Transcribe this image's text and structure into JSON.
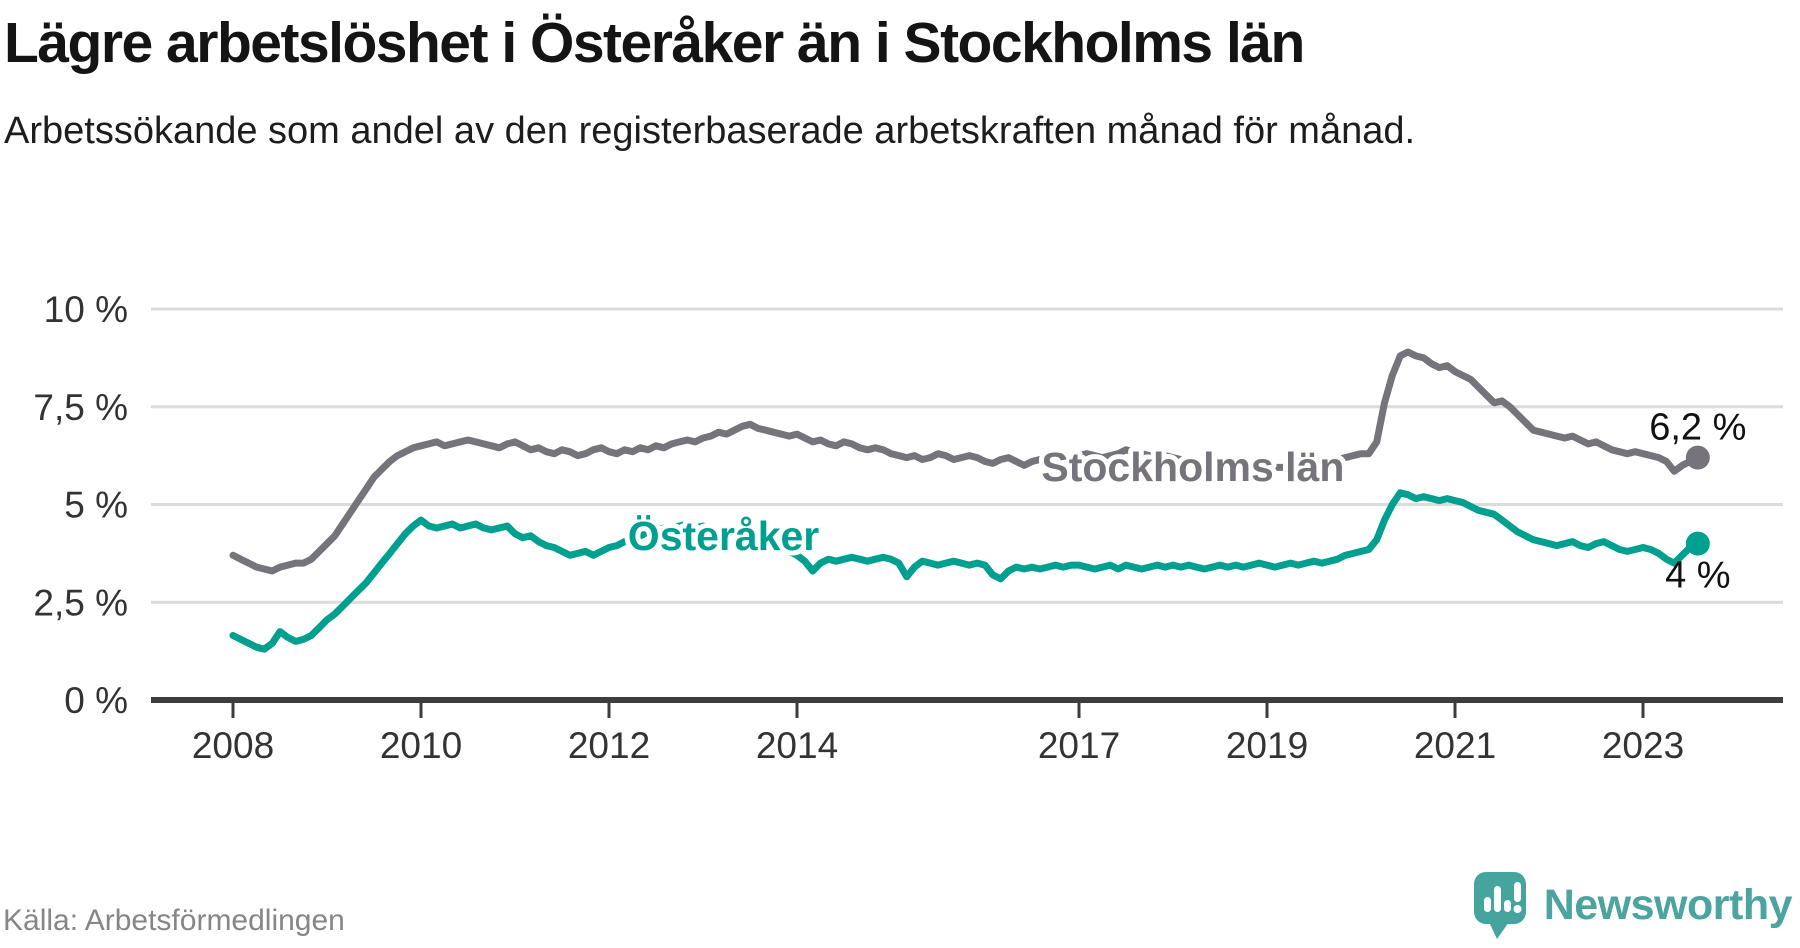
{
  "header": {
    "title": "Lägre arbetslöshet i Österåker än i Stockholms län",
    "subtitle": "Arbetssökande som andel av den registerbaserade arbetskraften månad för månad."
  },
  "footer": {
    "source": "Källa: Arbetsförmedlingen",
    "brand_name": "Newsworthy"
  },
  "colors": {
    "stockholm_line": "#76737b",
    "osteraker_line": "#00a091",
    "gridline": "#dcdcdc",
    "axis": "#3d3d3d",
    "tick_label": "#333333",
    "end_label": "#111111",
    "brand_teal": "#45a59e"
  },
  "chart_data": {
    "type": "line",
    "title": "Lägre arbetslöshet i Österåker än i Stockholms län",
    "subtitle": "Arbetssökande som andel av den registerbaserade arbetskraften månad för månad.",
    "unit": "%",
    "frequency": "monthly",
    "x_start": "2008-01",
    "x_end": "2023-08",
    "ylim": [
      0,
      10
    ],
    "grid": "horizontal",
    "legend_position": "inline-labels",
    "y_axis_ticks": [
      {
        "value": 10,
        "label": "10 %"
      },
      {
        "value": 7.5,
        "label": "7,5 %"
      },
      {
        "value": 5,
        "label": "5 %"
      },
      {
        "value": 2.5,
        "label": "2,5 %"
      },
      {
        "value": 0,
        "label": "0 %"
      }
    ],
    "x_axis_ticks": [
      {
        "year": 2008,
        "label": "2008"
      },
      {
        "year": 2010,
        "label": "2010"
      },
      {
        "year": 2012,
        "label": "2012"
      },
      {
        "year": 2014,
        "label": "2014"
      },
      {
        "year": 2017,
        "label": "2017"
      },
      {
        "year": 2019,
        "label": "2019"
      },
      {
        "year": 2021,
        "label": "2021"
      },
      {
        "year": 2023,
        "label": "2023"
      }
    ],
    "series": [
      {
        "name": "Stockholms län",
        "color": "#76737b",
        "end_label": "6,2 %",
        "end_label_side": "above",
        "label_pos": {
          "year": 2016.6,
          "value": 5.96
        },
        "values": [
          3.7,
          3.6,
          3.5,
          3.4,
          3.35,
          3.3,
          3.4,
          3.45,
          3.5,
          3.5,
          3.6,
          3.8,
          4.0,
          4.2,
          4.5,
          4.8,
          5.1,
          5.4,
          5.7,
          5.9,
          6.1,
          6.25,
          6.35,
          6.45,
          6.5,
          6.55,
          6.6,
          6.5,
          6.55,
          6.6,
          6.65,
          6.6,
          6.55,
          6.5,
          6.45,
          6.55,
          6.6,
          6.5,
          6.4,
          6.45,
          6.35,
          6.3,
          6.4,
          6.35,
          6.25,
          6.3,
          6.4,
          6.45,
          6.35,
          6.3,
          6.4,
          6.35,
          6.45,
          6.4,
          6.5,
          6.45,
          6.55,
          6.6,
          6.65,
          6.6,
          6.7,
          6.75,
          6.85,
          6.8,
          6.9,
          7.0,
          7.05,
          6.95,
          6.9,
          6.85,
          6.8,
          6.75,
          6.8,
          6.7,
          6.6,
          6.65,
          6.55,
          6.5,
          6.6,
          6.55,
          6.45,
          6.4,
          6.45,
          6.4,
          6.3,
          6.25,
          6.2,
          6.25,
          6.15,
          6.2,
          6.3,
          6.25,
          6.15,
          6.2,
          6.25,
          6.2,
          6.1,
          6.05,
          6.15,
          6.2,
          6.1,
          6.0,
          6.1,
          6.15,
          6.05,
          6.1,
          6.15,
          6.2,
          6.25,
          6.3,
          6.25,
          6.2,
          6.25,
          6.3,
          6.4,
          6.35,
          6.3,
          6.25,
          6.2,
          6.25,
          6.2,
          6.15,
          6.1,
          6.05,
          6.0,
          6.05,
          6.15,
          6.1,
          6.0,
          5.95,
          6.0,
          6.05,
          6.0,
          5.95,
          5.95,
          6.0,
          6.05,
          6.1,
          6.2,
          6.15,
          6.1,
          6.15,
          6.2,
          6.25,
          6.3,
          6.3,
          6.6,
          7.6,
          8.3,
          8.8,
          8.9,
          8.8,
          8.75,
          8.6,
          8.5,
          8.55,
          8.4,
          8.3,
          8.2,
          8.0,
          7.8,
          7.6,
          7.65,
          7.5,
          7.3,
          7.1,
          6.9,
          6.85,
          6.8,
          6.75,
          6.7,
          6.75,
          6.65,
          6.55,
          6.6,
          6.5,
          6.4,
          6.35,
          6.3,
          6.35,
          6.3,
          6.25,
          6.2,
          6.1,
          5.85,
          6.0,
          6.1,
          6.2
        ]
      },
      {
        "name": "Österåker",
        "color": "#00a091",
        "end_label": "4 %",
        "end_label_side": "below",
        "label_pos": {
          "year": 2012.2,
          "value": 4.19
        },
        "values": [
          1.65,
          1.55,
          1.45,
          1.35,
          1.3,
          1.45,
          1.75,
          1.6,
          1.5,
          1.55,
          1.65,
          1.85,
          2.05,
          2.2,
          2.4,
          2.6,
          2.8,
          3.0,
          3.25,
          3.5,
          3.75,
          4.0,
          4.25,
          4.45,
          4.6,
          4.45,
          4.4,
          4.45,
          4.5,
          4.4,
          4.45,
          4.5,
          4.4,
          4.35,
          4.4,
          4.45,
          4.25,
          4.15,
          4.2,
          4.05,
          3.95,
          3.9,
          3.8,
          3.7,
          3.75,
          3.8,
          3.7,
          3.8,
          3.9,
          3.95,
          4.05,
          4.15,
          4.2,
          4.3,
          4.35,
          4.4,
          4.4,
          4.45,
          4.5,
          4.4,
          4.45,
          4.4,
          4.35,
          4.4,
          4.3,
          4.25,
          4.15,
          4.1,
          4.0,
          3.95,
          3.9,
          3.8,
          3.7,
          3.55,
          3.3,
          3.5,
          3.6,
          3.55,
          3.6,
          3.65,
          3.6,
          3.55,
          3.6,
          3.65,
          3.6,
          3.5,
          3.15,
          3.4,
          3.55,
          3.5,
          3.45,
          3.5,
          3.55,
          3.5,
          3.45,
          3.5,
          3.45,
          3.2,
          3.1,
          3.3,
          3.4,
          3.35,
          3.4,
          3.35,
          3.4,
          3.45,
          3.4,
          3.45,
          3.45,
          3.4,
          3.35,
          3.4,
          3.45,
          3.35,
          3.45,
          3.4,
          3.35,
          3.4,
          3.45,
          3.4,
          3.45,
          3.4,
          3.45,
          3.4,
          3.35,
          3.4,
          3.45,
          3.4,
          3.45,
          3.4,
          3.45,
          3.5,
          3.45,
          3.4,
          3.45,
          3.5,
          3.45,
          3.5,
          3.55,
          3.5,
          3.55,
          3.6,
          3.7,
          3.75,
          3.8,
          3.85,
          4.1,
          4.6,
          5.0,
          5.3,
          5.25,
          5.15,
          5.2,
          5.15,
          5.1,
          5.15,
          5.1,
          5.05,
          4.95,
          4.85,
          4.8,
          4.75,
          4.6,
          4.45,
          4.3,
          4.2,
          4.1,
          4.05,
          4.0,
          3.95,
          4.0,
          4.05,
          3.95,
          3.9,
          4.0,
          4.05,
          3.95,
          3.85,
          3.8,
          3.85,
          3.9,
          3.85,
          3.75,
          3.6,
          3.5,
          3.7,
          3.9,
          4.0
        ]
      }
    ]
  }
}
